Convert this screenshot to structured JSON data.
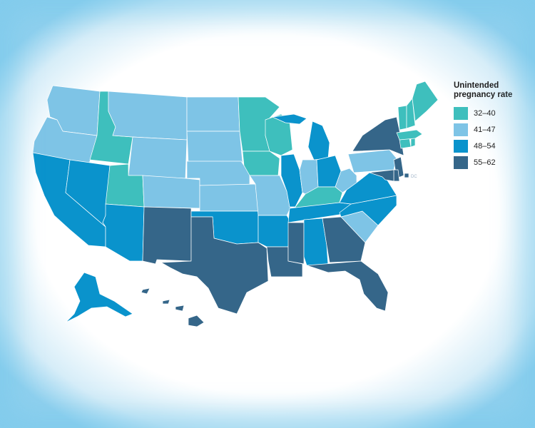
{
  "legend": {
    "title": "Unintended\npregnancy rate",
    "items": [
      {
        "label": "32–40",
        "color": "#3ebfbd"
      },
      {
        "label": "41–47",
        "color": "#7ec4e6"
      },
      {
        "label": "48–54",
        "color": "#0a93cc"
      },
      {
        "label": "55–62",
        "color": "#356689"
      }
    ]
  },
  "dc_label": "DC",
  "state_bins": {
    "WA": 1,
    "OR": 1,
    "CA": 2,
    "NV": 2,
    "ID": 0,
    "MT": 1,
    "WY": 1,
    "UT": 0,
    "AZ": 2,
    "CO": 1,
    "NM": 3,
    "ND": 1,
    "SD": 1,
    "NE": 1,
    "KS": 1,
    "OK": 2,
    "TX": 3,
    "MN": 0,
    "IA": 0,
    "MO": 1,
    "AR": 2,
    "LA": 3,
    "WI": 0,
    "IL": 2,
    "MS": 3,
    "MI": 2,
    "IN": 1,
    "OH": 2,
    "KY": 0,
    "TN": 2,
    "AL": 2,
    "GA": 3,
    "FL": 3,
    "SC": 1,
    "NC": 2,
    "VA": 2,
    "WV": 1,
    "PA": 1,
    "NY": 3,
    "NJ": 3,
    "DE": 3,
    "MD": 3,
    "DC": 3,
    "CT": 0,
    "RI": 0,
    "MA": 0,
    "VT": 0,
    "NH": 0,
    "ME": 0,
    "AK": 2,
    "HI": 3
  }
}
